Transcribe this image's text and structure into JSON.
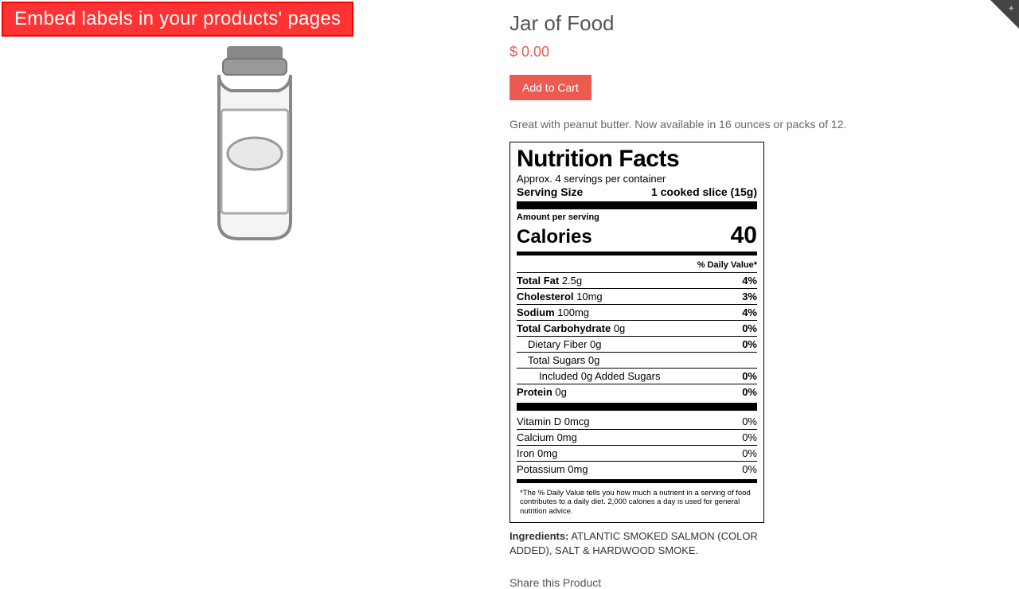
{
  "banner": {
    "text": "Embed labels in your products' pages"
  },
  "product": {
    "title": "Jar of Food",
    "price": "$ 0.00",
    "add_to_cart": "Add to Cart",
    "description": "Great with peanut butter. Now available in 16 ounces or packs of 12.",
    "share_heading": "Share this Product"
  },
  "nutrition": {
    "heading": "Nutrition Facts",
    "servings_per_container": "Approx. 4 servings per container",
    "serving_size_label": "Serving Size",
    "serving_size_value": "1 cooked slice (15g)",
    "amount_per_serving": "Amount per serving",
    "calories_label": "Calories",
    "calories_value": "40",
    "dv_header": "% Daily Value*",
    "rows": [
      {
        "label_bold": "Total Fat",
        "label_rest": " 2.5g",
        "pct": "4%",
        "indent": 0
      },
      {
        "label_bold": "Cholesterol",
        "label_rest": " 10mg",
        "pct": "3%",
        "indent": 0
      },
      {
        "label_bold": "Sodium",
        "label_rest": " 100mg",
        "pct": "4%",
        "indent": 0
      },
      {
        "label_bold": "Total Carbohydrate",
        "label_rest": " 0g",
        "pct": "0%",
        "indent": 0
      },
      {
        "label_bold": "",
        "label_rest": "Dietary Fiber 0g",
        "pct": "0%",
        "indent": 1
      },
      {
        "label_bold": "",
        "label_rest": "Total Sugars 0g",
        "pct": "",
        "indent": 1
      },
      {
        "label_bold": "",
        "label_rest": "Included 0g Added Sugars",
        "pct": "0%",
        "indent": 2
      },
      {
        "label_bold": "Protein",
        "label_rest": " 0g",
        "pct": "0%",
        "indent": 0
      }
    ],
    "micronutrients": [
      {
        "label": "Vitamin D 0mcg",
        "pct": "0%"
      },
      {
        "label": "Calcium 0mg",
        "pct": "0%"
      },
      {
        "label": "Iron 0mg",
        "pct": "0%"
      },
      {
        "label": "Potassium 0mg",
        "pct": "0%"
      }
    ],
    "footnote": "*The % Daily Value tells you how much a nutrient in a serving of food contributes to a daily diet. 2,000 calories a day is used for general nutrition advice."
  },
  "ingredients": {
    "label": "Ingredients:",
    "text": " ATLANTIC SMOKED SALMON (COLOR ADDED), SALT & HARDWOOD SMOKE."
  },
  "colors": {
    "banner_bg": "#ff3333",
    "accent": "#ec5b4f",
    "text_muted": "#666"
  }
}
